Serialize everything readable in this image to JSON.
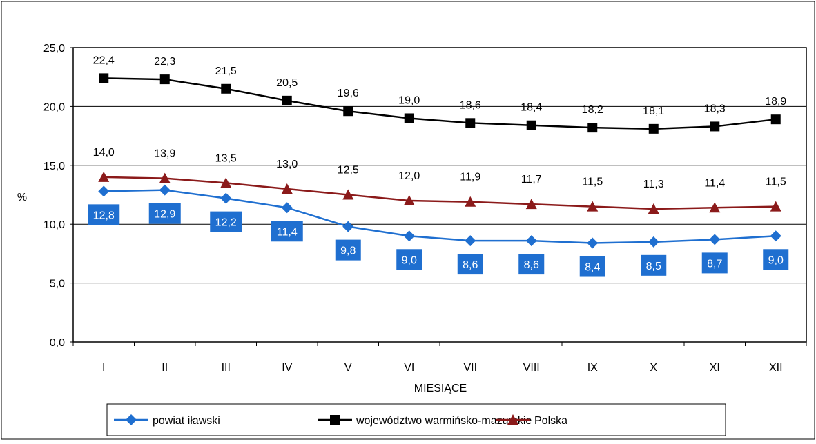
{
  "chart_data": {
    "type": "line",
    "title": "",
    "xlabel": "MIESIĄCE",
    "ylabel": "%",
    "categories": [
      "I",
      "II",
      "III",
      "IV",
      "V",
      "VI",
      "VII",
      "VIII",
      "IX",
      "X",
      "XI",
      "XII"
    ],
    "ylim": [
      0,
      25
    ],
    "yticks": [
      "0,0",
      "5,0",
      "10,0",
      "15,0",
      "20,0",
      "25,0"
    ],
    "grid": true,
    "legend_position": "bottom",
    "series": [
      {
        "name": "powiat iławski",
        "color": "#1F6FD0",
        "marker": "diamond",
        "values": [
          12.8,
          12.9,
          12.2,
          11.4,
          9.8,
          9.0,
          8.6,
          8.6,
          8.4,
          8.5,
          8.7,
          9.0
        ],
        "labels": [
          "12,8",
          "12,9",
          "12,2",
          "11,4",
          "9,8",
          "9,0",
          "8,6",
          "8,6",
          "8,4",
          "8,5",
          "8,7",
          "9,0"
        ]
      },
      {
        "name": "województwo warmińsko-mazurskie",
        "color": "#000000",
        "marker": "square",
        "values": [
          22.4,
          22.3,
          21.5,
          20.5,
          19.6,
          19.0,
          18.6,
          18.4,
          18.2,
          18.1,
          18.3,
          18.9
        ],
        "labels": [
          "22,4",
          "22,3",
          "21,5",
          "20,5",
          "19,6",
          "19,0",
          "18,6",
          "18,4",
          "18,2",
          "18,1",
          "18,3",
          "18,9"
        ]
      },
      {
        "name": "Polska",
        "color": "#8B1A1A",
        "marker": "triangle",
        "values": [
          14.0,
          13.9,
          13.5,
          13.0,
          12.5,
          12.0,
          11.9,
          11.7,
          11.5,
          11.3,
          11.4,
          11.5
        ],
        "labels": [
          "14,0",
          "13,9",
          "13,5",
          "13,0",
          "12,5",
          "12,0",
          "11,9",
          "11,7",
          "11,5",
          "11,3",
          "11,4",
          "11,5"
        ]
      }
    ]
  }
}
